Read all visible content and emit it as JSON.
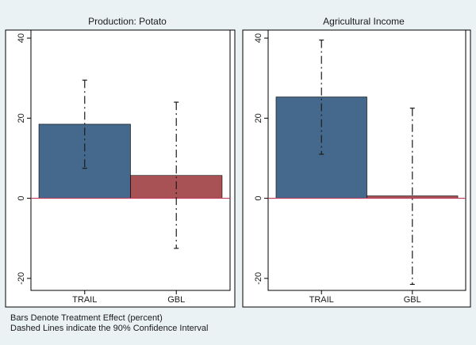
{
  "chart_data": [
    {
      "type": "bar",
      "title": "Production: Potato",
      "categories": [
        "TRAIL",
        "GBL"
      ],
      "values": [
        18.5,
        5.7
      ],
      "ci_low": [
        7.5,
        -12.5
      ],
      "ci_high": [
        29.5,
        24.0
      ],
      "colors": [
        "#44698c",
        "#a95255"
      ],
      "ylim": [
        -23,
        42
      ],
      "yticks": [
        -20,
        0,
        20,
        40
      ],
      "xlabel": "",
      "ylabel": "",
      "grid": false
    },
    {
      "type": "bar",
      "title": "Agricultural Income",
      "categories": [
        "TRAIL",
        "GBL"
      ],
      "values": [
        25.3,
        0.6
      ],
      "ci_low": [
        11.0,
        -21.5
      ],
      "ci_high": [
        39.5,
        22.5
      ],
      "colors": [
        "#44698c",
        "#a95255"
      ],
      "ylim": [
        -23,
        42
      ],
      "yticks": [
        -20,
        0,
        20,
        40
      ],
      "xlabel": "",
      "ylabel": "",
      "grid": false
    }
  ],
  "notes": {
    "line1": "Bars Denote Treatment Effect (percent)",
    "line2": "Dashed Lines indicate the 90% Confidence Interval"
  },
  "colors": {
    "zero_line": "#c0395a",
    "ci_line": "#1a1a1a",
    "panel_bg": "#ffffff",
    "outer_bg": "#eaf2f3"
  }
}
